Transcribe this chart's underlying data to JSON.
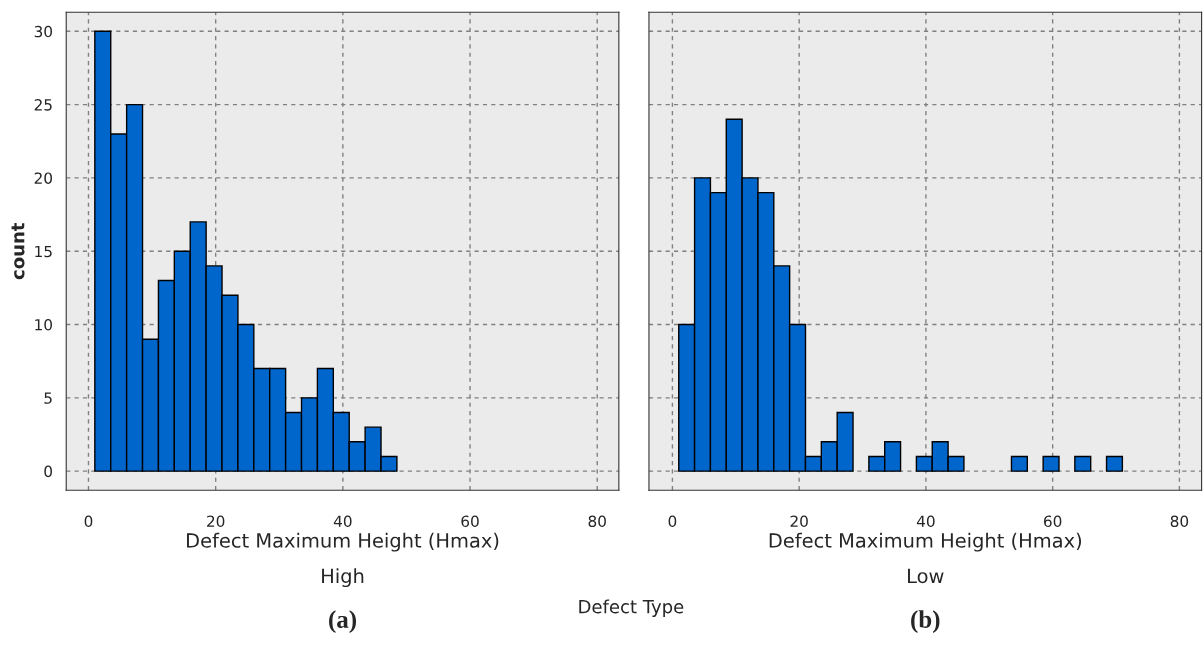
{
  "chart_data": [
    {
      "type": "histogram",
      "xlabel": "Defect Maximum Height (Hmax)",
      "ylabel": "count",
      "annotations": [
        "High",
        "(a)",
        "Defect Type"
      ],
      "color": "#0066cc",
      "bins": [
        1,
        3.5,
        6,
        8.5,
        11,
        13.5,
        16,
        18.5,
        21,
        23.5,
        26,
        28.5,
        31,
        33.5,
        36,
        38.5,
        41,
        43.5,
        46,
        48.5
      ],
      "values": [
        30,
        23,
        25,
        9,
        13,
        15,
        17,
        14,
        12,
        10,
        7,
        7,
        4,
        5,
        7,
        4,
        2,
        3,
        1
      ],
      "xlim": [
        -3.5,
        83.4
      ],
      "ylim": [
        -1.3,
        31.3
      ],
      "xticks": [
        0,
        20,
        40,
        60,
        80
      ],
      "yticks": [
        0,
        5,
        10,
        15,
        20,
        25,
        30
      ],
      "grid": true
    },
    {
      "type": "histogram",
      "xlabel": "Defect Maximum Height (Hmax)",
      "annotations": [
        "Low",
        "(b)"
      ],
      "color": "#0066cc",
      "bins": [
        1,
        3.5,
        6,
        8.5,
        11,
        13.5,
        16,
        18.5,
        21,
        23.5,
        26,
        28.5,
        31,
        33.5,
        36,
        38.5,
        41,
        43.5,
        46,
        48.5,
        51,
        53.5,
        56,
        58.5,
        61,
        63.5,
        66,
        68.5,
        71
      ],
      "values": [
        10,
        20,
        19,
        24,
        20,
        19,
        14,
        10,
        1,
        2,
        4,
        0,
        1,
        2,
        0,
        1,
        2,
        1,
        0,
        0,
        0,
        1,
        0,
        1,
        0,
        1,
        0,
        1
      ],
      "xlim": [
        -3.7,
        83.5
      ],
      "ylim": [
        -1.3,
        31.3
      ],
      "xticks": [
        0,
        20,
        40,
        60,
        80
      ],
      "yticks": [
        0,
        5,
        10,
        15,
        20,
        25,
        30
      ],
      "tick_labels": "x",
      "grid": true
    }
  ]
}
